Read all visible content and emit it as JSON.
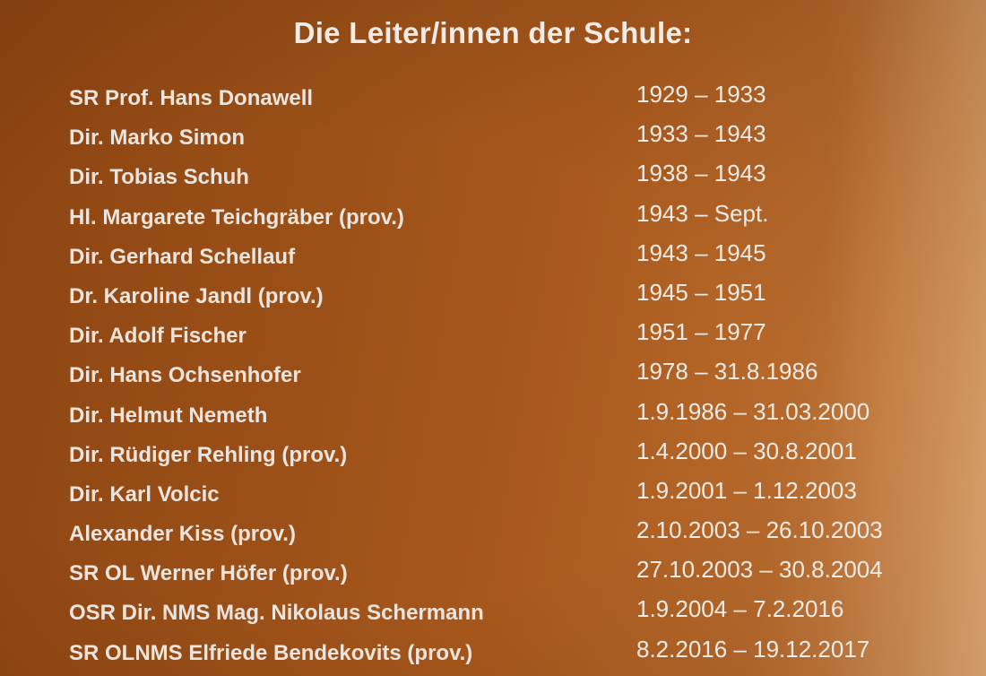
{
  "title": "Die Leiter/innen der Schule:",
  "rows": [
    {
      "name": "SR Prof. Hans Donawell",
      "dates": "1929 – 1933"
    },
    {
      "name": "Dir. Marko Simon",
      "dates": "1933 – 1943"
    },
    {
      "name": "Dir. Tobias Schuh",
      "dates": "1938 – 1943"
    },
    {
      "name": "Hl. Margarete Teichgräber (prov.)",
      "dates": "1943 – Sept."
    },
    {
      "name": "Dir. Gerhard Schellauf",
      "dates": "1943 – 1945"
    },
    {
      "name": "Dr. Karoline Jandl (prov.)",
      "dates": "1945 – 1951"
    },
    {
      "name": "Dir. Adolf Fischer",
      "dates": "1951 – 1977"
    },
    {
      "name": "Dir. Hans Ochsenhofer",
      "dates": "1978 – 31.8.1986"
    },
    {
      "name": "Dir. Helmut Nemeth",
      "dates": "1.9.1986 – 31.03.2000"
    },
    {
      "name": "Dir. Rüdiger Rehling (prov.)",
      "dates": "1.4.2000 – 30.8.2001"
    },
    {
      "name": "Dir. Karl Volcic",
      "dates": "1.9.2001 – 1.12.2003"
    },
    {
      "name": "Alexander Kiss (prov.)",
      "dates": "2.10.2003 – 26.10.2003"
    },
    {
      "name": "SR OL Werner Höfer (prov.)",
      "dates": "27.10.2003 – 30.8.2004"
    },
    {
      "name": "OSR Dir. NMS Mag. Nikolaus Schermann",
      "dates": "1.9.2004 – 7.2.2016"
    },
    {
      "name": "SR OLNMS Elfriede Bendekovits (prov.)",
      "dates": "8.2.2016 – 19.12.2017"
    }
  ],
  "colors": {
    "background": "#a8581c",
    "text": "#f1ebe6"
  }
}
